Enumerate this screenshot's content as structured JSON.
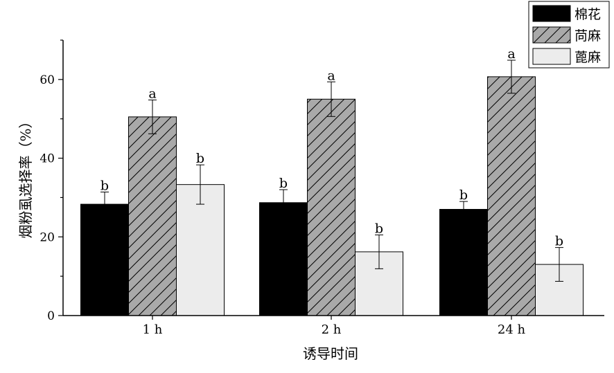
{
  "chart_data": {
    "type": "bar",
    "xlabel": "诱导时间",
    "ylabel": "烟粉虱选择率（%）",
    "categories": [
      "1 h",
      "2 h",
      "24 h"
    ],
    "ylim": [
      0,
      70
    ],
    "yticks": [
      0,
      20,
      40,
      60
    ],
    "grid": false,
    "legend_position": "top-right",
    "series": [
      {
        "name": "棉花",
        "values": [
          28.3,
          28.7,
          27.0
        ],
        "errors": [
          3.1,
          3.3,
          2.0
        ],
        "letters": [
          "b",
          "b",
          "b"
        ],
        "fill": "#000000",
        "pattern": "solid"
      },
      {
        "name": "苘麻",
        "values": [
          50.5,
          55.0,
          60.7
        ],
        "errors": [
          4.3,
          4.4,
          4.2
        ],
        "letters": [
          "a",
          "a",
          "a"
        ],
        "fill": "#a9a9a9",
        "pattern": "hatch"
      },
      {
        "name": "蓖麻",
        "values": [
          33.3,
          16.2,
          13.0
        ],
        "errors": [
          5.0,
          4.3,
          4.3
        ],
        "letters": [
          "b",
          "b",
          "b"
        ],
        "fill": "#ececec",
        "pattern": "solid"
      }
    ]
  }
}
